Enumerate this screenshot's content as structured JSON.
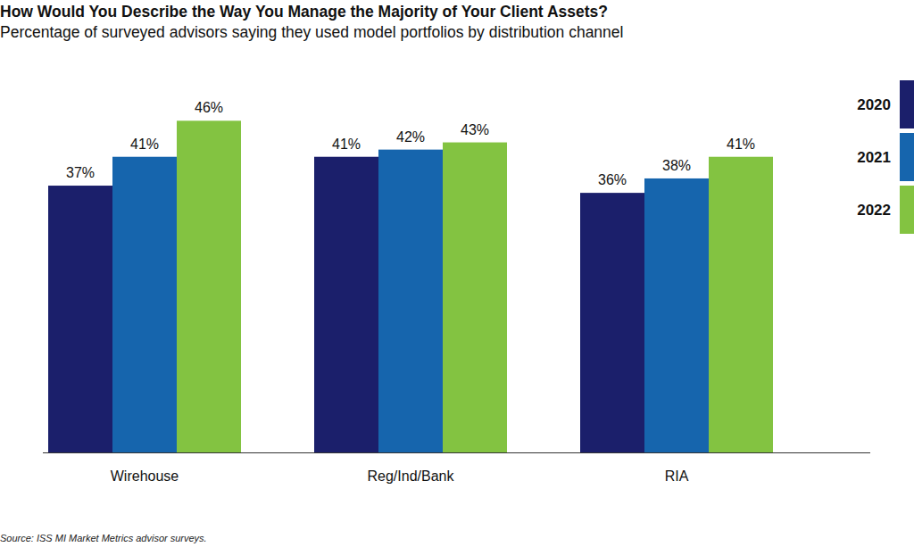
{
  "chart_data": {
    "type": "bar",
    "title": "How Would You Describe the Way You Manage the Majority of Your Client Assets?",
    "subtitle": "Percentage of surveyed advisors saying they used model portfolios by distribution channel",
    "source": "Source: ISS MI Market Metrics advisor surveys.",
    "categories": [
      "Wirehouse",
      "Reg/Ind/Bank",
      "RIA"
    ],
    "series": [
      {
        "name": "2020",
        "color": "#1b1f6b",
        "values": [
          37,
          41,
          36
        ],
        "value_labels": [
          "37%",
          "41%",
          "36%"
        ]
      },
      {
        "name": "2021",
        "color": "#1665ad",
        "values": [
          41,
          42,
          38
        ],
        "value_labels": [
          "41%",
          "42%",
          "38%"
        ]
      },
      {
        "name": "2022",
        "color": "#83c341",
        "values": [
          46,
          43,
          41
        ],
        "value_labels": [
          "46%",
          "43%",
          "41%"
        ]
      }
    ],
    "ylim": [
      0,
      50
    ],
    "grid": false,
    "legend": "right",
    "data_labels": true,
    "tick_labels": "x"
  }
}
